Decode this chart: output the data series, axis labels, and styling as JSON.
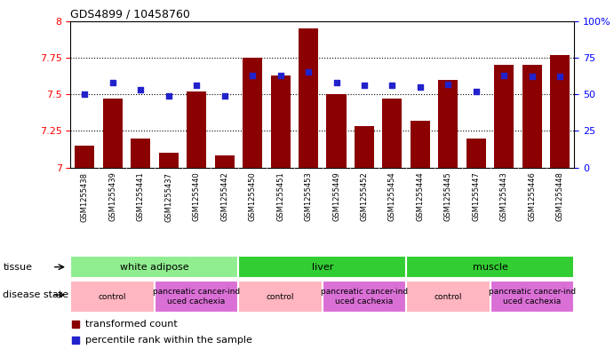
{
  "title": "GDS4899 / 10458760",
  "samples": [
    "GSM1255438",
    "GSM1255439",
    "GSM1255441",
    "GSM1255437",
    "GSM1255440",
    "GSM1255442",
    "GSM1255450",
    "GSM1255451",
    "GSM1255453",
    "GSM1255449",
    "GSM1255452",
    "GSM1255454",
    "GSM1255444",
    "GSM1255445",
    "GSM1255447",
    "GSM1255443",
    "GSM1255446",
    "GSM1255448"
  ],
  "bar_values": [
    7.15,
    7.47,
    7.2,
    7.1,
    7.52,
    7.08,
    7.75,
    7.63,
    7.95,
    7.5,
    7.28,
    7.47,
    7.32,
    7.6,
    7.2,
    7.7,
    7.7,
    7.77
  ],
  "percentile_values": [
    50,
    58,
    53,
    49,
    56,
    49,
    63,
    63,
    65,
    58,
    56,
    56,
    55,
    57,
    52,
    63,
    62,
    62
  ],
  "bar_color": "#8B0000",
  "square_color": "#2222CC",
  "ylim_left": [
    7.0,
    8.0
  ],
  "ylim_right": [
    0,
    100
  ],
  "yticks_left": [
    7.0,
    7.25,
    7.5,
    7.75,
    8.0
  ],
  "yticks_right": [
    0,
    25,
    50,
    75,
    100
  ],
  "ytick_labels_left": [
    "7",
    "7.25",
    "7.5",
    "7.75",
    "8"
  ],
  "ytick_labels_right": [
    "0",
    "25",
    "50",
    "75",
    "100%"
  ],
  "tissue_groups": [
    {
      "label": "white adipose",
      "start": 0,
      "end": 6,
      "color": "#90EE90"
    },
    {
      "label": "liver",
      "start": 6,
      "end": 12,
      "color": "#32CD32"
    },
    {
      "label": "muscle",
      "start": 12,
      "end": 18,
      "color": "#32CD32"
    }
  ],
  "tissue_colors": [
    "#90EE90",
    "#32CD32",
    "#32CD32"
  ],
  "disease_groups": [
    {
      "label": "control",
      "start": 0,
      "end": 3
    },
    {
      "label": "pancreatic cancer-ind\nuced cachexia",
      "start": 3,
      "end": 6
    },
    {
      "label": "control",
      "start": 6,
      "end": 9
    },
    {
      "label": "pancreatic cancer-ind\nuced cachexia",
      "start": 9,
      "end": 12
    },
    {
      "label": "control",
      "start": 12,
      "end": 15
    },
    {
      "label": "pancreatic cancer-ind\nuced cachexia",
      "start": 15,
      "end": 18
    }
  ],
  "disease_colors": [
    "#FFB6C1",
    "#DA70D6",
    "#FFB6C1",
    "#DA70D6",
    "#FFB6C1",
    "#DA70D6"
  ],
  "legend_items": [
    {
      "label": "transformed count",
      "color": "#8B0000"
    },
    {
      "label": "percentile rank within the sample",
      "color": "#2222CC"
    }
  ],
  "tissue_label": "tissue",
  "disease_label": "disease state",
  "xticklabel_bg": "#C8C8C8",
  "grid_lines": [
    7.25,
    7.5,
    7.75
  ]
}
